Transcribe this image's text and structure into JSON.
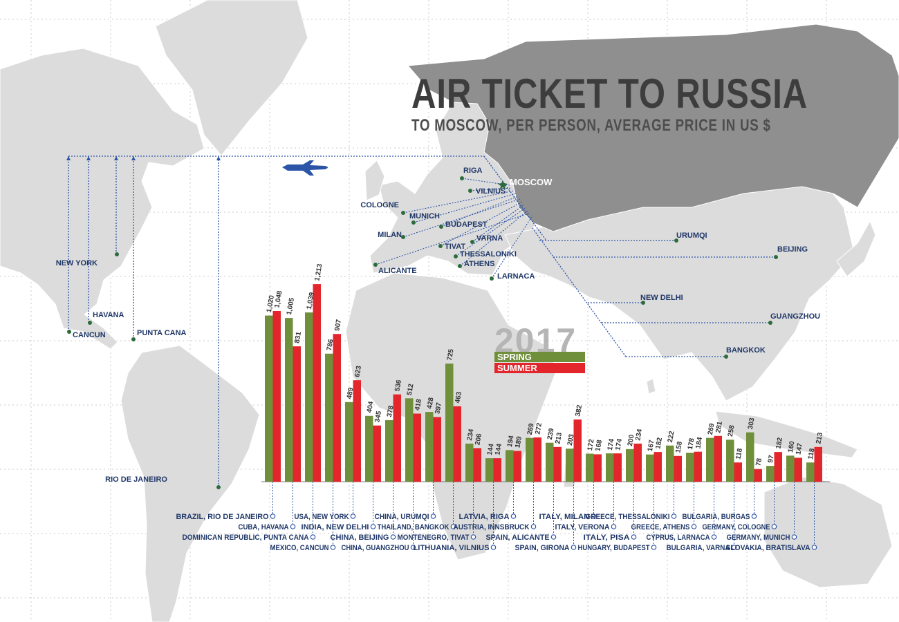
{
  "chart_data": {
    "type": "bar",
    "title": "AIR TICKET TO RUSSIA",
    "subtitle": "TO MOSCOW, PER PERSON, AVERAGE PRICE IN US $",
    "year": "2017",
    "legend_position": "right",
    "ylim": [
      0,
      1300
    ],
    "categories": [
      "BRAZIL, RIO DE JANEIRO",
      "CUBA, HAVANA",
      "DOMINICAN REPUBLIC, PUNTA CANA",
      "MEXICO, CANCUN",
      "USA, NEW YORK",
      "INDIA, NEW DELHI",
      "CHINA, BEIJING",
      "CHINA, GUANGZHOU",
      "CHINA, URUMQI",
      "THAILAND, BANGKOK",
      "MONTENEGRO, TIVAT",
      "LITHUANIA, VILNIUS",
      "LATVIA, RIGA",
      "AUSTRIA, INNSBRUCK",
      "SPAIN, ALICANTE",
      "SPAIN, GIRONA",
      "ITALY, MILAN",
      "ITALY, VERONA",
      "ITALY, PISA",
      "HUNGARY, BUDAPEST",
      "GREECE, THESSALONIKI",
      "GREECE, ATHENS",
      "CYPRUS, LARNACA",
      "BULGARIA, VARNA",
      "BULGARIA, BURGAS",
      "GERMANY, COLOGNE",
      "GERMANY, MUNICH",
      "SLOVAKIA, BRATISLAVA"
    ],
    "series": [
      {
        "name": "SPRING",
        "color": "#6f8f3a",
        "values": [
          1020,
          1005,
          1039,
          786,
          489,
          404,
          378,
          512,
          428,
          725,
          234,
          144,
          194,
          269,
          239,
          203,
          172,
          174,
          200,
          167,
          222,
          178,
          269,
          258,
          303,
          97,
          160,
          118
        ],
        "labels": [
          "1,020",
          "1,005",
          "1,039",
          "786",
          "489",
          "404",
          "378",
          "512",
          "428",
          "725",
          "234",
          "144",
          "194",
          "269",
          "239",
          "203",
          "172",
          "174",
          "200",
          "167",
          "222",
          "178",
          "269",
          "258",
          "303",
          "97",
          "160",
          "118"
        ]
      },
      {
        "name": "SUMMER",
        "color": "#e3262b",
        "values": [
          1048,
          831,
          1213,
          907,
          623,
          345,
          536,
          418,
          397,
          463,
          206,
          144,
          189,
          272,
          213,
          382,
          168,
          174,
          234,
          182,
          158,
          184,
          281,
          118,
          78,
          182,
          147,
          213
        ],
        "labels": [
          "1,048",
          "831",
          "1,213",
          "907",
          "623",
          "345",
          "536",
          "418",
          "397",
          "463",
          "206",
          "144",
          "189",
          "272",
          "213",
          "382",
          "168",
          "174",
          "234",
          "182",
          "158",
          "184",
          "281",
          "118",
          "78",
          "182",
          "147",
          "213"
        ]
      }
    ]
  },
  "map": {
    "hub_city": "MOSCOW",
    "cities": [
      "RIGA",
      "VILNIUS",
      "COLOGNE",
      "MUNICH",
      "BUDAPEST",
      "MILAN",
      "TIVAT",
      "VARNA",
      "THESSALONIKI",
      "ATHENS",
      "ALICANTE",
      "LARNACA",
      "URUMQI",
      "BEIJING",
      "NEW DELHI",
      "GUANGZHOU",
      "BANGKOK",
      "NEW YORK",
      "HAVANA",
      "CANCUN",
      "PUNTA CANA",
      "RIO DE JANEIRO"
    ],
    "colors": {
      "land": "#dcdcdc",
      "russia": "#8f8f8f",
      "route": "#2c55a8",
      "city_dot": "#2d6b3b",
      "city_label": "#1f3768",
      "plane": "#2c55a8"
    },
    "icons": {
      "plane": "airplane-icon",
      "hub": "star-icon"
    }
  }
}
